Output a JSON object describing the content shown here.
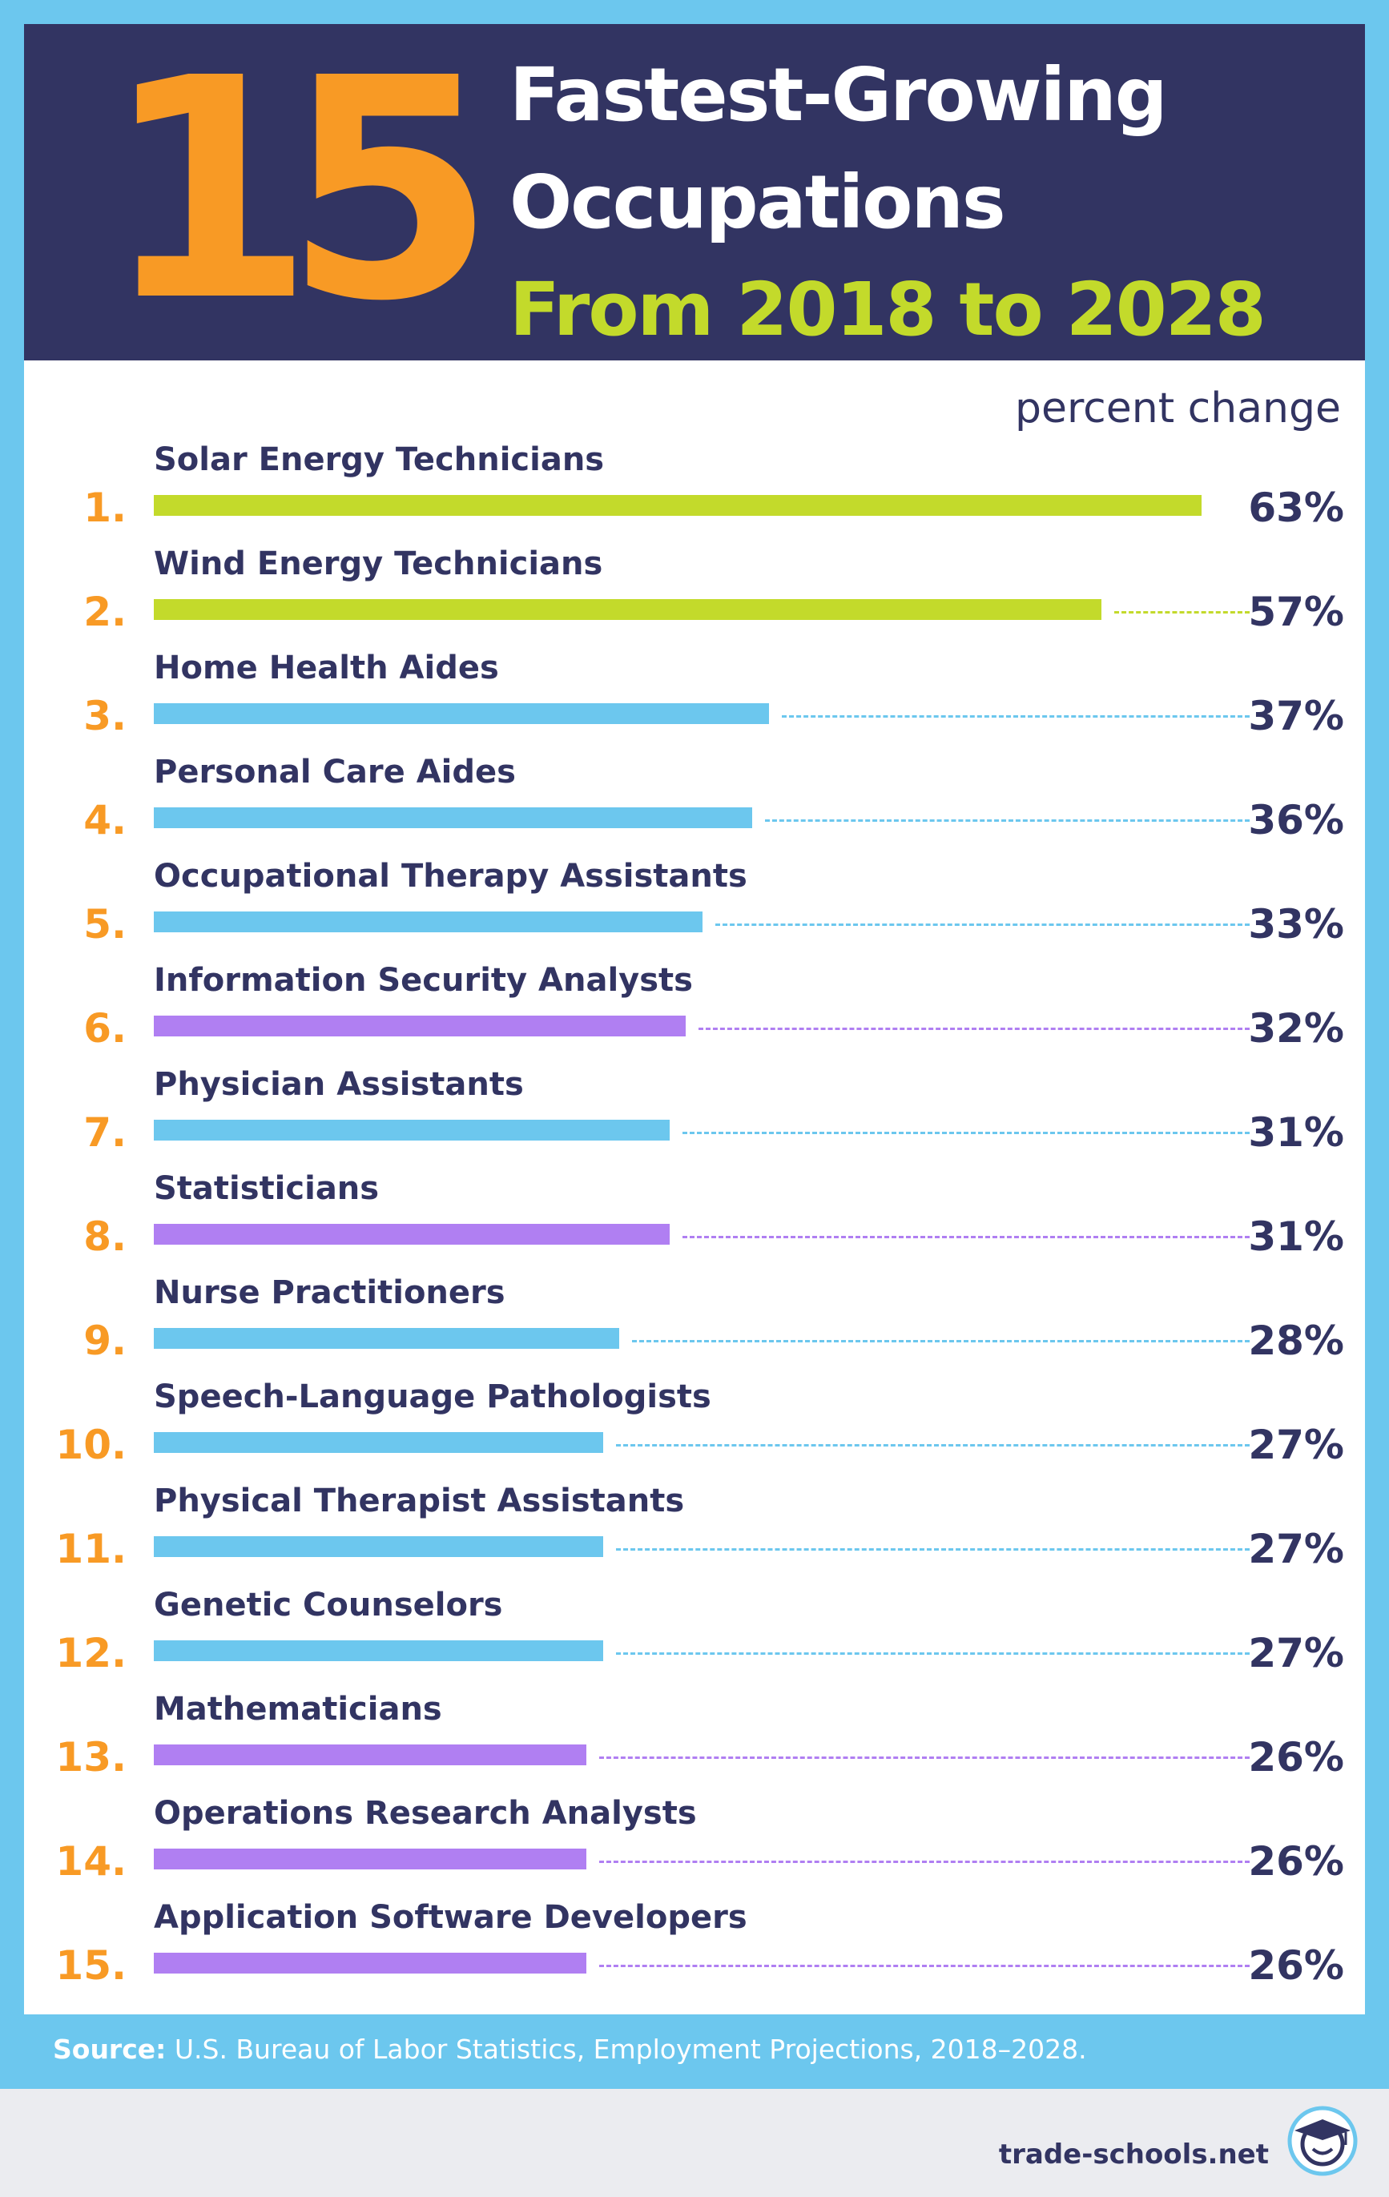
{
  "header": {
    "number": "15",
    "line1": "Fastest-Growing",
    "line2": "Occupations",
    "line3": "From 2018 to 2028"
  },
  "colors": {
    "energy": "#c3da2b",
    "health": "#6cc7ee",
    "math_tech": "#b07ff2",
    "rank": "#f89a25",
    "text": "#323462"
  },
  "chart_data": {
    "type": "bar",
    "orientation": "horizontal",
    "title": "15 Fastest-Growing Occupations From 2018 to 2028",
    "value_label": "percent change",
    "unit": "%",
    "xlim": [
      0,
      63
    ],
    "categories": [
      "Solar Energy Technicians",
      "Wind Energy Technicians",
      "Home Health Aides",
      "Personal Care Aides",
      "Occupational Therapy Assistants",
      "Information Security Analysts",
      "Physician Assistants",
      "Statisticians",
      "Nurse Practitioners",
      "Speech-Language Pathologists",
      "Physical Therapist Assistants",
      "Genetic Counselors",
      "Mathematicians",
      "Operations Research Analysts",
      "Application Software Developers"
    ],
    "ranks": [
      "1.",
      "2.",
      "3.",
      "4.",
      "5.",
      "6.",
      "7.",
      "8.",
      "9.",
      "10.",
      "11.",
      "12.",
      "13.",
      "14.",
      "15."
    ],
    "values": [
      63,
      57,
      37,
      36,
      33,
      32,
      31,
      31,
      28,
      27,
      27,
      27,
      26,
      26,
      26
    ],
    "value_labels": [
      "63%",
      "57%",
      "37%",
      "36%",
      "33%",
      "32%",
      "31%",
      "31%",
      "28%",
      "27%",
      "27%",
      "27%",
      "26%",
      "26%",
      "26%"
    ],
    "bar_colors": [
      "#c3da2b",
      "#c3da2b",
      "#6cc7ee",
      "#6cc7ee",
      "#6cc7ee",
      "#b07ff2",
      "#6cc7ee",
      "#b07ff2",
      "#6cc7ee",
      "#6cc7ee",
      "#6cc7ee",
      "#6cc7ee",
      "#b07ff2",
      "#b07ff2",
      "#b07ff2"
    ]
  },
  "footer": {
    "source_label": "Source:",
    "source_text": " U.S. Bureau of Labor Statistics, Employment Projections, 2018–2028.",
    "brand": "trade-schools.net"
  }
}
